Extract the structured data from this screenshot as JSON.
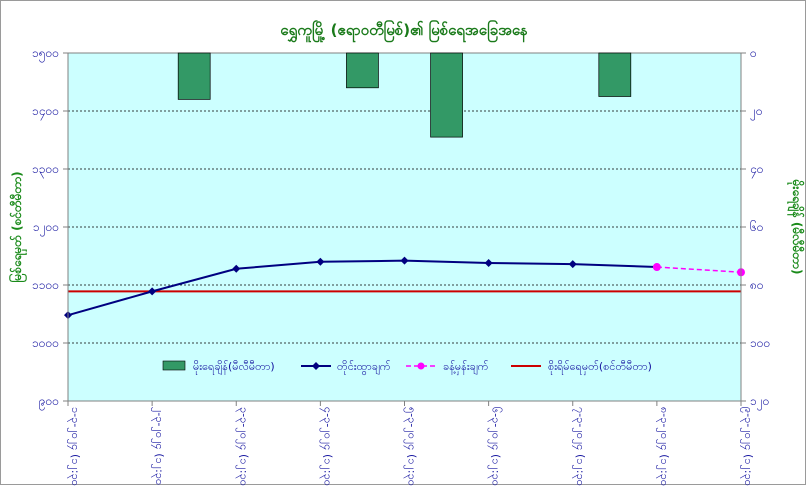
{
  "chart_data": {
    "title": "ရွှေကူမြို့ (ဧရာဝတီမြစ်)၏ မြစ်ရေအခြေအနေ",
    "left_axis": {
      "label": "မြစ်ရေမှတ် (စင်တီမီတာ)",
      "ylim": [
        900,
        1500
      ],
      "ticks": [
        900,
        1000,
        1100,
        1200,
        1300,
        1400,
        1500
      ],
      "tick_labels": [
        "၉၀၀",
        "၁၀၀၀",
        "၁၁၀၀",
        "၁၂၀၀",
        "၁၃၀၀",
        "၁၄၀၀",
        "၁၅၀၀"
      ]
    },
    "right_axis": {
      "label": "မိုးရေချိန် (မီလီမီတာ)",
      "ylim": [
        0,
        120
      ],
      "inverted": true,
      "ticks": [
        0,
        20,
        40,
        60,
        80,
        100,
        120
      ],
      "tick_labels": [
        "၀",
        "၂၀",
        "၄၀",
        "၆၀",
        "၈၀",
        "၁၀၀",
        "၁၂၀"
      ]
    },
    "categories": [
      "၁-၃-၂၀၂၄ (၁၂:၃၀)",
      "၂-၃-၂၀၂၄ (၁၂:၃၀)",
      "၃-၃-၂၀၂၄ (၁၂:၃၀)",
      "၄-၃-၂၀၂၄ (၁၂:၃၀)",
      "၅-၃-၂၀၂၄ (၁၂:၃၀)",
      "၆-၃-၂၀၂၄ (၁၂:၃၀)",
      "၇-၃-၂၀၂၄ (၁၂:၃၀)",
      "၈-၃-၂၀၂၄ (၁၂:၃၀)",
      "၉-၃-၂၀၂၄ (၁၂:၃၀)"
    ],
    "series": [
      {
        "name": "မိုးရေချိန်(မီလီမီတာ)",
        "type": "bar",
        "axis": "right",
        "color": "#339966",
        "values": [
          0,
          16,
          0,
          12,
          29,
          0,
          15,
          0,
          0
        ]
      },
      {
        "name": "တိုင်းထွာချက်",
        "type": "line",
        "axis": "left",
        "color": "#000080",
        "values": [
          1048,
          1089,
          1128,
          1140,
          1142,
          1138,
          1136,
          1131,
          null
        ]
      },
      {
        "name": "ခန့်မှန်းချက်",
        "type": "dashed-line",
        "axis": "left",
        "color": "#ff00ff",
        "values": [
          null,
          null,
          null,
          null,
          null,
          null,
          null,
          1131,
          1122
        ]
      },
      {
        "name": "စိုးရိမ်ရေမှတ်(စင်တီမီတာ)",
        "type": "hline",
        "axis": "left",
        "color": "#cc0000",
        "value": 1089
      }
    ],
    "grid": "horizontal dashed",
    "legend_placement": "bottom-inside"
  },
  "colors": {
    "plot_background": "#ccffff",
    "title": "#1a7a1a",
    "axis_title": "#1a8a1a",
    "tick_labels": "#1515a0"
  }
}
